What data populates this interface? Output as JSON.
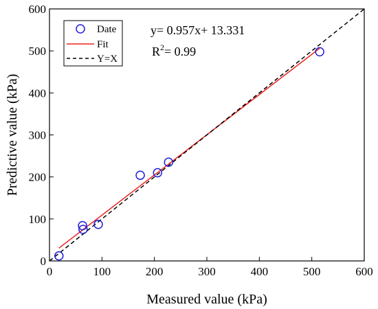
{
  "chart_data": {
    "type": "scatter",
    "xlabel": "Measured value (kPa)",
    "ylabel": "Predictive value (kPa)",
    "xlim": [
      0,
      600
    ],
    "ylim": [
      0,
      600
    ],
    "xticks": [
      0,
      100,
      200,
      300,
      400,
      500,
      600
    ],
    "yticks": [
      0,
      100,
      200,
      300,
      400,
      500,
      600
    ],
    "grid": false,
    "legend_position": "top-left",
    "series": [
      {
        "name": "Date",
        "kind": "scatter",
        "marker": "open-circle",
        "color": "#1f1fd6",
        "points": [
          {
            "x": 18,
            "y": 12
          },
          {
            "x": 63,
            "y": 84
          },
          {
            "x": 64,
            "y": 75
          },
          {
            "x": 93,
            "y": 87
          },
          {
            "x": 173,
            "y": 204
          },
          {
            "x": 206,
            "y": 210
          },
          {
            "x": 227,
            "y": 235
          },
          {
            "x": 515,
            "y": 498
          }
        ]
      },
      {
        "name": "Fit",
        "kind": "line",
        "style": "solid",
        "color": "#e8231f",
        "slope": 0.957,
        "intercept": 13.331,
        "x_range": [
          18,
          515
        ]
      },
      {
        "name": "Y=X",
        "kind": "line",
        "style": "dashed",
        "color": "#000000",
        "slope": 1,
        "intercept": 0,
        "x_range": [
          0,
          600
        ]
      }
    ],
    "annotations": {
      "equation": "y= 0.957x+ 13.331",
      "r2_prefix": "R",
      "r2_sup": "2",
      "r2_value": "= 0.99"
    }
  }
}
